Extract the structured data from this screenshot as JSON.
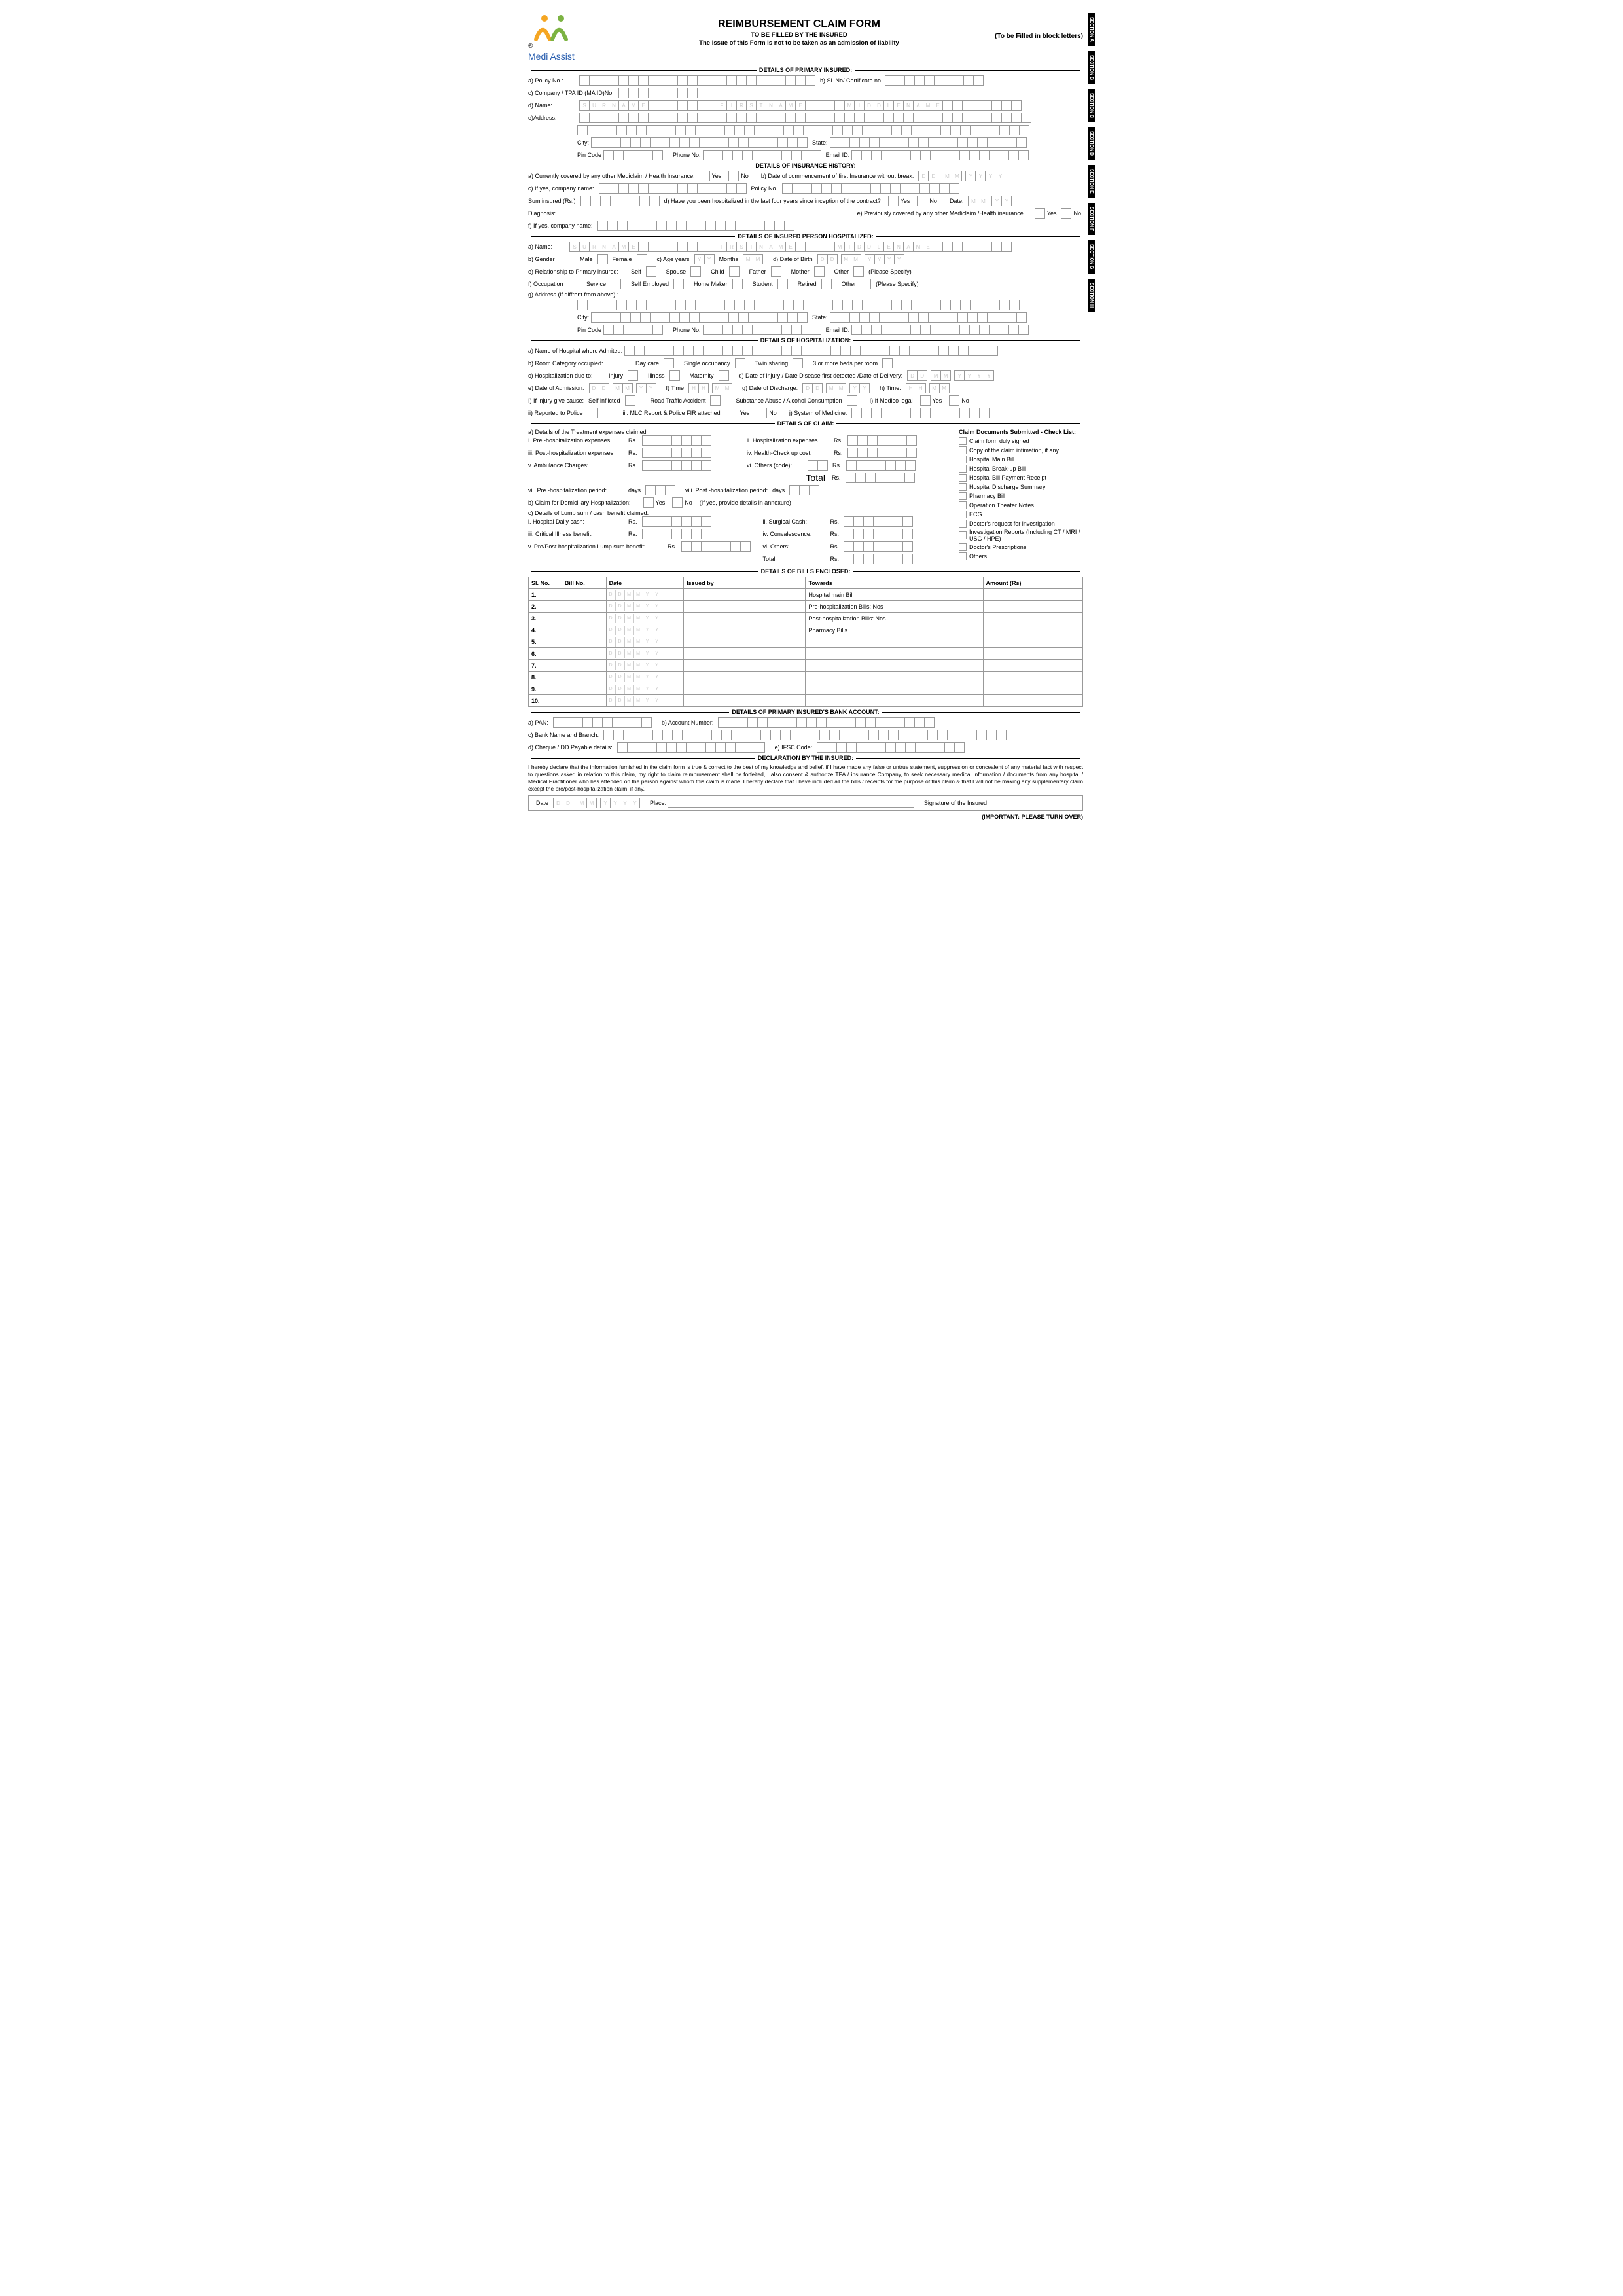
{
  "header": {
    "logoText": "Medi Assist",
    "regMark": "®",
    "mainTitle": "REIMBURSEMENT CLAIM FORM",
    "subTitle": "TO BE FILLED BY THE INSURED",
    "subTitle2": "The issue of this Form is not to be taken as an admission of liability",
    "rightNote": "(To be Filled in block letters)"
  },
  "sections": {
    "primaryInsured": "DETAILS OF PRIMARY INSURED:",
    "insuranceHistory": "DETAILS OF INSURANCE HISTORY:",
    "hospitalized": "DETAILS OF INSURED PERSON HOSPITALIZED:",
    "hospitalization": "DETAILS OF HOSPITALIZATION:",
    "claim": "DETAILS OF CLAIM:",
    "bills": "DETAILS OF BILLS ENCLOSED:",
    "bank": "DETAILS OF PRIMARY INSURED'S BANK ACCOUNT:",
    "declaration": "DECLARATION BY THE INSURED:"
  },
  "tabs": [
    "SECTION A",
    "SECTION B",
    "SECTION C",
    "SECTION D",
    "SECTION E",
    "SECTION F",
    "SECTION G",
    "SECTION H"
  ],
  "pi": {
    "policy": "a) Policy No.:",
    "siNo": "b) Sl. No/ Certificate no.",
    "company": "c) Company / TPA ID (MA ID)No:",
    "name": "d) Name:",
    "nameHints": [
      "S",
      "U",
      "R",
      "N",
      "A",
      "M",
      "E",
      "",
      "",
      "",
      "",
      "",
      "",
      "",
      "F",
      "I",
      "R",
      "S",
      "T",
      "N",
      "A",
      "M",
      "E",
      "",
      "",
      "",
      "",
      "M",
      "I",
      "D",
      "D",
      "L",
      "E",
      "N",
      "A",
      "M",
      "E"
    ],
    "address": "e)Address:",
    "city": "City:",
    "state": "State:",
    "pin": "Pin Code",
    "phone": "Phone No:",
    "email": "Email ID:"
  },
  "hist": {
    "a": "a) Currently covered by any other Mediclaim / Health Insurance:",
    "yes": "Yes",
    "no": "No",
    "b": "b) Date of  commencement of first Insurance without break:",
    "c": "c) If yes, company name:",
    "policyNo": "Policy No.",
    "sum": "Sum insured (Rs.)",
    "d": "d) Have you been hospitalized in the last four years since inception of the contract?",
    "date": "Date:",
    "diag": "Diagnosis:",
    "e": "e) Previously covered by any other Mediclaim /Health insurance : :",
    "f": "f) If yes, company name:"
  },
  "hp": {
    "a": "a) Name:",
    "b": "b) Gender",
    "male": "Male",
    "female": "Female",
    "c": "c) Age years",
    "months": "Months",
    "dob": "d) Date of Birth",
    "e": "e) Relationship to Primary insured:",
    "rel": [
      "Self",
      "Spouse",
      "Child",
      "Father",
      "Mother",
      "Other"
    ],
    "specify": "(Please Specify)",
    "f": "f) Occupation",
    "occ": [
      "Service",
      "Self Employed",
      "Home Maker",
      "Student",
      "Retired",
      "Other"
    ],
    "g": "g) Address (if diffrent from above) :"
  },
  "hosp": {
    "a": "a) Name of Hospital where Admited:",
    "b": "b) Room Category occupied:",
    "room": [
      "Day care",
      "Single occupancy",
      "Twin sharing",
      "3 or more beds per room"
    ],
    "c": "c) Hospitalization due to:",
    "due": [
      "Injury",
      "Illness",
      "Maternity"
    ],
    "d": "d) Date of injury / Date Disease first detected  /Date of Delivery:",
    "e": "e) Date of  Admission:",
    "fTime": "f) Time",
    "g": "g) Date of Discharge:",
    "hTime": "h) Time:",
    "iInjury": "I) If injury give cause:",
    "causes": [
      "Self inflicted",
      "Road Traffic Accident",
      "Substance Abuse / Alcohol Consumption"
    ],
    "iMedico": "I) If Medico  legal",
    "ii": "ii) Reported to Police",
    "iii": "iii. MLC Report & Police FIR attached",
    "j": "j) System of Medicine:"
  },
  "claim": {
    "aTitle": "a) Details of the Treatment expenses claimed",
    "i": "I.  Pre  -hospitalization expenses",
    "rs": "Rs.",
    "ii": "ii.  Hospitalization expenses",
    "iii": "iii. Post-hospitalization expenses",
    "iv": "iv.  Health-Check up cost:",
    "v": "v. Ambulance Charges:",
    "vi": "vi. Others (code):",
    "total": "Total",
    "vii": "vii.  Pre  -hospitalization period:",
    "days": "days",
    "viii": "viii. Post -hospitalization period:",
    "b": "b) Claim for Domiciliary Hospitalization:",
    "bNote": "(If yes, provide details in annexure)",
    "cTitle": "c) Details of Lump sum / cash benefit claimed:",
    "cI": "i. Hospital Daily cash:",
    "cII": "ii. Surgical Cash:",
    "cIII": "iii. Critical Illness benefit:",
    "cIV": "iv. Convalescence:",
    "cV": "v. Pre/Post hospitalization Lump sum benefit:",
    "cVI": "vi. Others:",
    "cTotal": "Total",
    "checkTitle": "Claim Documents Submitted - Check List:",
    "checklist": [
      "Claim form duly signed",
      "Copy of the claim intimation, if any",
      "Hospital Main Bill",
      "Hospital Break-up Bill",
      "Hospital Bill Payment Receipt",
      "Hospital Discharge Summary",
      "Pharmacy Bill",
      "Operation Theater Notes",
      "ECG",
      "Doctor's request for investigation",
      "Investigation Reports (Including CT / MRI / USG / HPE)",
      "Doctor's Prescriptions",
      "Others"
    ]
  },
  "bills": {
    "cols": [
      "Sl. No.",
      "Bill No.",
      "Date",
      "Issued by",
      "Towards",
      "Amount (Rs)"
    ],
    "rows": [
      {
        "n": "1.",
        "toward": "Hospital main Bill"
      },
      {
        "n": "2.",
        "toward": "Pre-hospitalization Bills:        Nos"
      },
      {
        "n": "3.",
        "toward": "Post-hospitalization Bills:       Nos"
      },
      {
        "n": "4.",
        "toward": "Pharmacy Bills"
      },
      {
        "n": "5.",
        "toward": ""
      },
      {
        "n": "6.",
        "toward": ""
      },
      {
        "n": "7.",
        "toward": ""
      },
      {
        "n": "8.",
        "toward": ""
      },
      {
        "n": "9.",
        "toward": ""
      },
      {
        "n": "10.",
        "toward": ""
      }
    ],
    "dateHints": [
      "D",
      "D",
      "M",
      "M",
      "Y",
      "Y"
    ]
  },
  "bank": {
    "a": "a) PAN:",
    "b": "b) Account Number:",
    "c": "c) Bank Name and Branch:",
    "d": "d) Cheque / DD Payable details:",
    "e": "e) IFSC Code:"
  },
  "decl": {
    "text": "I hereby declare that the information furnished in the claim form is true & correct to the best of my knowledge and belief. if I have made any false or untrue statement, suppression or concealent of any material fact with respect to questions asked in relation to this claim, my right to claim reimbrusement shall be forfeited, I also consent & authorize TPA / insurance Company, to seek necessary medical information / documents from any hospital / Medical Practitioner who has attended on the person against whom this claim is made. I hereby declare that I have included all the bills / receipts for the purpose of this claim & that I will not be making any supplementary claim except the pre/post-hospitalization claim, if any.",
    "date": "Date",
    "place": "Place:",
    "sig": "Signature of the Insured"
  },
  "footer": "(IMPORTANT: PLEASE TURN OVER)",
  "colors": {
    "logoOrange": "#f5a623",
    "logoGreen": "#7cb342",
    "logoBlue": "#2a5fb0",
    "border": "#999"
  }
}
